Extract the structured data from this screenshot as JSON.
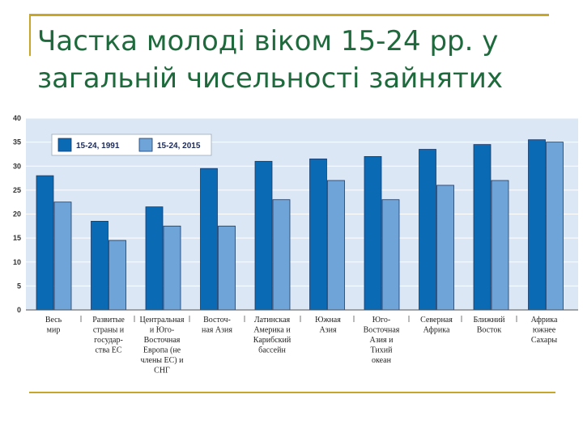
{
  "slide": {
    "title": "Частка молоді віком 15-24 рр. у загальній чисельності зайнятих"
  },
  "chart_data": {
    "type": "bar",
    "categories": [
      [
        "Весь",
        "мир"
      ],
      [
        "Развитые",
        "страны и",
        "государ-",
        "ства ЕС"
      ],
      [
        "Центральная",
        "и Юго-",
        "Восточная",
        "Европа (не",
        "члены ЕС) и",
        "СНГ"
      ],
      [
        "Восточ-",
        "ная Азия"
      ],
      [
        "Латинская",
        "Америка и",
        "Карибский",
        "бассейн"
      ],
      [
        "Южная",
        "Азия"
      ],
      [
        "Юго-",
        "Восточная",
        "Азия и",
        "Тихий",
        "океан"
      ],
      [
        "Северная",
        "Африка"
      ],
      [
        "Ближний",
        "Восток"
      ],
      [
        "Африка",
        "южнее",
        "Сахары"
      ]
    ],
    "series": [
      {
        "name": "15-24, 1991",
        "color": "#0a6ab4",
        "values": [
          28,
          18.5,
          21.5,
          29.5,
          31,
          31.5,
          32,
          33.5,
          34.5,
          35.5
        ]
      },
      {
        "name": "15-24, 2015",
        "color": "#6fa4d9",
        "values": [
          22.5,
          14.5,
          17.5,
          17.5,
          23,
          27,
          23,
          26,
          27,
          35
        ]
      }
    ],
    "ylim": [
      0,
      40
    ],
    "yticks": [
      0,
      5,
      10,
      15,
      20,
      25,
      30,
      35,
      40
    ],
    "legend": "top-left",
    "grid": true,
    "plot_bg": "#dbe7f4"
  }
}
